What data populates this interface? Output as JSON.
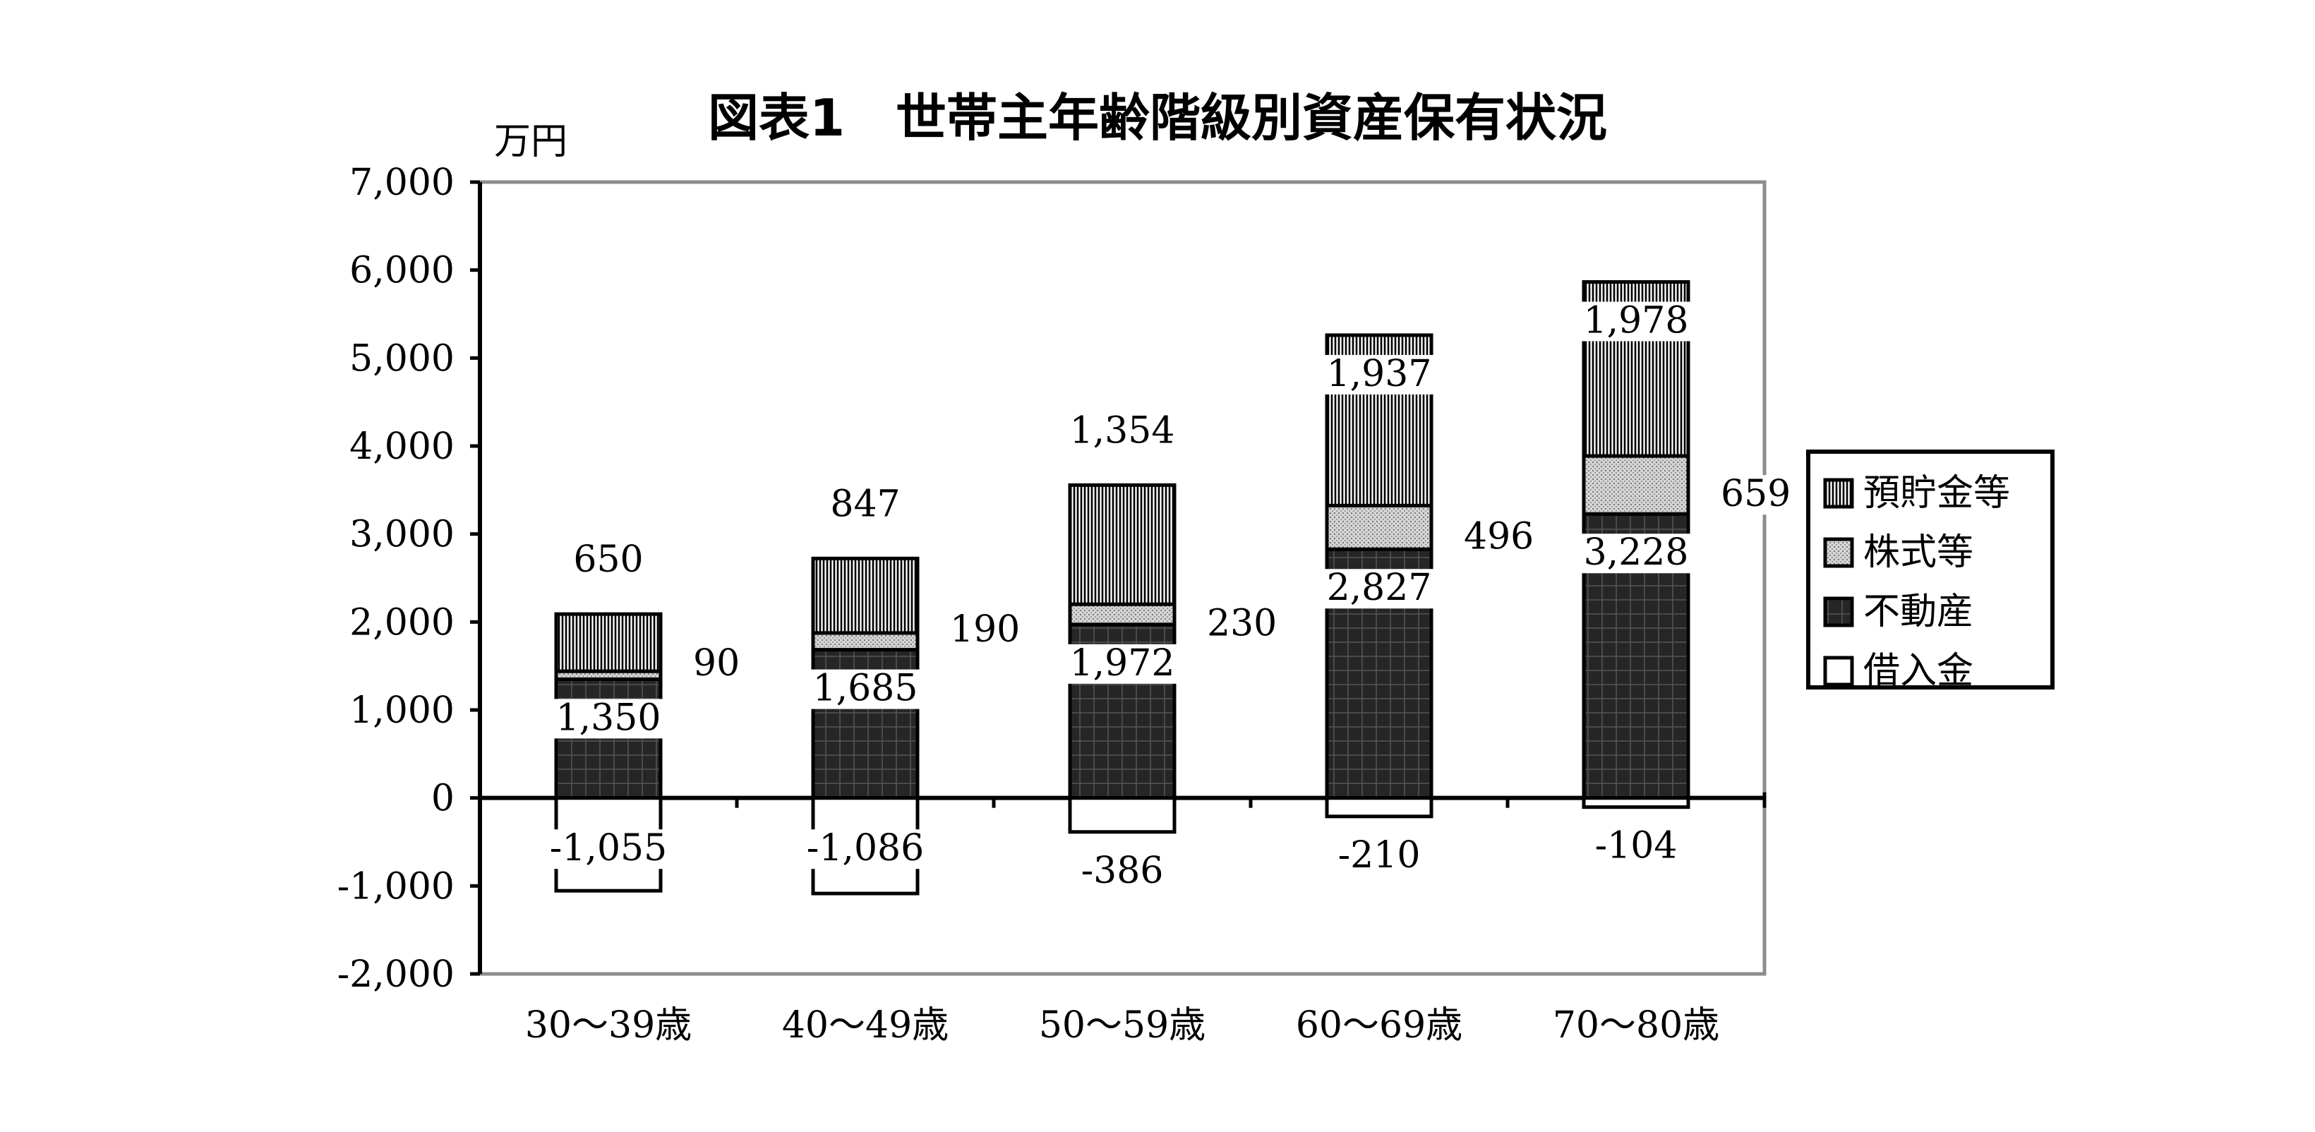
{
  "chart_data": {
    "type": "bar",
    "stacked": true,
    "title": "図表1　世帯主年齢階級別資産保有状況",
    "unit_label": "万円",
    "ylim": [
      -2000,
      7000
    ],
    "yticks": [
      "7,000",
      "6,000",
      "5,000",
      "4,000",
      "3,000",
      "2,000",
      "1,000",
      "0",
      "-1,000",
      "-2,000"
    ],
    "ytick_values": [
      7000,
      6000,
      5000,
      4000,
      3000,
      2000,
      1000,
      0,
      -1000,
      -2000
    ],
    "categories": [
      "30～39歳",
      "40～49歳",
      "50～59歳",
      "60～69歳",
      "70～80歳"
    ],
    "series": [
      {
        "name": "借入金",
        "values": [
          -1055,
          -1086,
          -386,
          -210,
          -104
        ],
        "labels": [
          "-1,055",
          "-1,086",
          "-386",
          "-210",
          "-104"
        ]
      },
      {
        "name": "不動産",
        "values": [
          1350,
          1685,
          1972,
          2827,
          3228
        ],
        "labels": [
          "1,350",
          "1,685",
          "1,972",
          "2,827",
          "3,228"
        ]
      },
      {
        "name": "株式等",
        "values": [
          90,
          190,
          230,
          496,
          659
        ],
        "labels": [
          "90",
          "190",
          "230",
          "496",
          "659"
        ]
      },
      {
        "name": "預貯金等",
        "values": [
          650,
          847,
          1354,
          1937,
          1978
        ],
        "labels": [
          "650",
          "847",
          "1,354",
          "1,937",
          "1,978"
        ]
      }
    ],
    "legend": {
      "placement": "right",
      "entries": [
        "預貯金等",
        "株式等",
        "不動産",
        "借入金"
      ]
    },
    "grid": false
  }
}
